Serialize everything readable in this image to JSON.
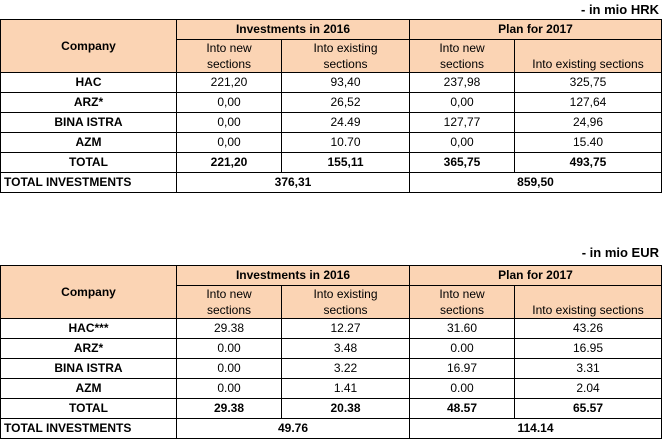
{
  "tables": [
    {
      "unit": "- in mio HRK",
      "header": {
        "company": "Company",
        "group1": "Investments in 2016",
        "group2": "Plan for 2017",
        "sub_new_1": "Into new",
        "sub_new_2": "sections",
        "sub_exist_1": "Into existing",
        "sub_exist_2": "sections",
        "sub_new3_1": "Into new",
        "sub_new3_2": "sections",
        "sub_exist4": "Into existing sections"
      },
      "rows": [
        {
          "company": "HAC",
          "inv_new": "221,20",
          "inv_existing": "93,40",
          "plan_new": "237,98",
          "plan_existing": "325,75"
        },
        {
          "company": "ARZ*",
          "inv_new": "0,00",
          "inv_existing": "26,52",
          "plan_new": "0,00",
          "plan_existing": "127,64"
        },
        {
          "company": "BINA ISTRA",
          "inv_new": "0,00",
          "inv_existing": "24.49",
          "plan_new": "127,77",
          "plan_existing": "24,96"
        },
        {
          "company": "AZM",
          "inv_new": "0,00",
          "inv_existing": "10.70",
          "plan_new": "0,00",
          "plan_existing": "15.40"
        }
      ],
      "total": {
        "label": "TOTAL",
        "inv_new": "221,20",
        "inv_existing": "155,11",
        "plan_new": "365,75",
        "plan_existing": "493,75"
      },
      "grand": {
        "label": "TOTAL INVESTMENTS",
        "inv": "376,31",
        "plan": "859,50"
      }
    },
    {
      "unit": "- in mio EUR",
      "header": {
        "company": "Company",
        "group1": "Investments in 2016",
        "group2": "Plan for 2017",
        "sub_new_1": "Into new",
        "sub_new_2": "sections",
        "sub_exist_1": "Into existing",
        "sub_exist_2": "sections",
        "sub_new3_1": "Into new",
        "sub_new3_2": "sections",
        "sub_exist4": "Into existing sections"
      },
      "rows": [
        {
          "company": "HAC***",
          "inv_new": "29.38",
          "inv_existing": "12.27",
          "plan_new": "31.60",
          "plan_existing": "43.26"
        },
        {
          "company": "ARZ*",
          "inv_new": "0.00",
          "inv_existing": "3.48",
          "plan_new": "0.00",
          "plan_existing": "16.95"
        },
        {
          "company": "BINA ISTRA",
          "inv_new": "0.00",
          "inv_existing": "3.22",
          "plan_new": "16.97",
          "plan_existing": "3.31"
        },
        {
          "company": "AZM",
          "inv_new": "0.00",
          "inv_existing": "1.41",
          "plan_new": "0.00",
          "plan_existing": "2.04"
        }
      ],
      "total": {
        "label": "TOTAL",
        "inv_new": "29.38",
        "inv_existing": "20.38",
        "plan_new": "48.57",
        "plan_existing": "65.57"
      },
      "grand": {
        "label": "TOTAL INVESTMENTS",
        "inv": "49.76",
        "plan": "114.14"
      }
    }
  ]
}
